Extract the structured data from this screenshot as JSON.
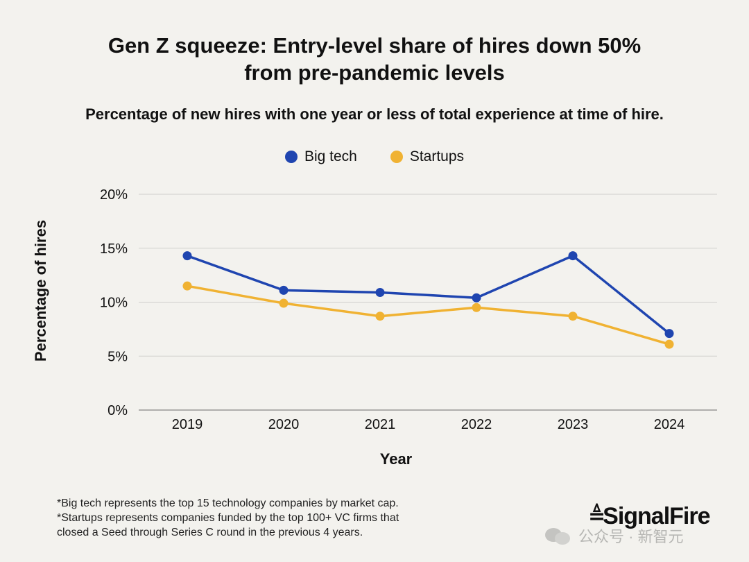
{
  "title_line1": "Gen Z squeeze: Entry-level share of hires down 50%",
  "title_line2": "from pre-pandemic levels",
  "subtitle": "Percentage of new hires with one year or less of total experience at time of hire.",
  "footnotes": [
    "*Big tech represents the top 15 technology companies by market cap.",
    "*Startups represents companies funded by the top 100+ VC firms that",
    "closed a Seed through Series C round in the previous 4 years."
  ],
  "logo_text": "SignalFire",
  "watermark_text": "公众号 · 新智元",
  "chart_data": {
    "type": "line",
    "title": "Gen Z squeeze: Entry-level share of hires down 50% from pre-pandemic levels",
    "subtitle": "Percentage of new hires with one year or less of total experience at time of hire.",
    "xlabel": "Year",
    "ylabel": "Percentage of hires",
    "categories": [
      "2019",
      "2020",
      "2021",
      "2022",
      "2023",
      "2024"
    ],
    "y_ticks": [
      0,
      5,
      10,
      15,
      20
    ],
    "y_tick_labels": [
      "0%",
      "5%",
      "10%",
      "15%",
      "20%"
    ],
    "ylim": [
      0,
      20
    ],
    "grid": true,
    "legend_position": "top-center",
    "series": [
      {
        "name": "Big tech",
        "color": "#1f45b0",
        "values": [
          14.3,
          11.1,
          10.9,
          10.4,
          14.3,
          7.1
        ]
      },
      {
        "name": "Startups",
        "color": "#f0b232",
        "values": [
          11.5,
          9.9,
          8.7,
          9.5,
          8.7,
          6.1
        ]
      }
    ]
  }
}
